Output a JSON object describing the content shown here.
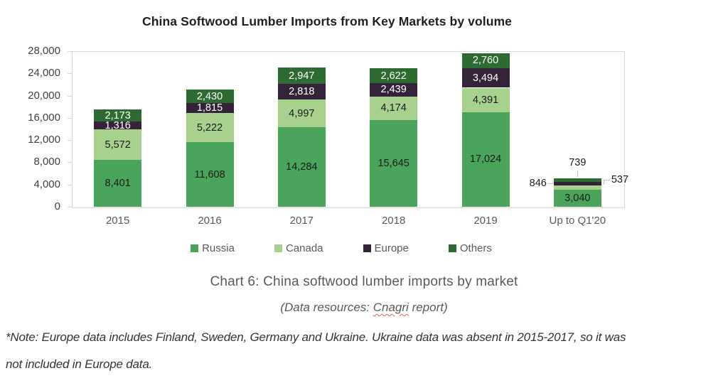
{
  "title": "China Softwood Lumber Imports from Key Markets by volume",
  "chart_data": {
    "type": "bar",
    "stacked": true,
    "title": "China Softwood Lumber Imports from Key Markets by volume",
    "categories": [
      "2015",
      "2016",
      "2017",
      "2018",
      "2019",
      "Up to Q1'20"
    ],
    "series": [
      {
        "name": "Russia",
        "color": "#4aa45c",
        "label_color": "#1a1a1a",
        "values": [
          8401,
          11608,
          14284,
          15645,
          17024,
          3040
        ]
      },
      {
        "name": "Canada",
        "color": "#a9d18e",
        "label_color": "#1a1a1a",
        "values": [
          5572,
          5222,
          4997,
          4174,
          4391,
          846
        ]
      },
      {
        "name": "Europe",
        "color": "#342338",
        "label_color": "#ffffff",
        "values": [
          1316,
          1815,
          2818,
          2439,
          3494,
          537
        ]
      },
      {
        "name": "Others",
        "color": "#2e6b33",
        "label_color": "#ffffff",
        "values": [
          2173,
          2430,
          2947,
          2622,
          2760,
          739
        ]
      }
    ],
    "ylim": [
      0,
      28000
    ],
    "ytick_step": 4000,
    "ytick_labels": [
      "0",
      "4,000",
      "8,000",
      "12,000",
      "16,000",
      "20,000",
      "24,000",
      "28,000"
    ],
    "grid": false,
    "legend_position": "bottom",
    "last_category_callouts": true
  },
  "captions": {
    "chart_caption": "Chart 6: China softwood lumber imports by market",
    "data_source_prefix": "(Data resources: ",
    "data_source_word": "Cnagri",
    "data_source_suffix": " report)",
    "note_lines": [
      "*Note: Europe data includes Finland, Sweden, Germany and Ukraine. Ukraine data was absent in 2015-2017, so it was",
      "not included in Europe data."
    ]
  },
  "colors": {
    "plot_border": "#d7d7d7",
    "leader_line": "#bfbfbf",
    "axis_label": "#404040",
    "category_label": "#595959",
    "legend_text": "#595959",
    "caption_text": "#595959",
    "note_text": "#333333",
    "spellcheck_underline": "#e05c5c"
  }
}
